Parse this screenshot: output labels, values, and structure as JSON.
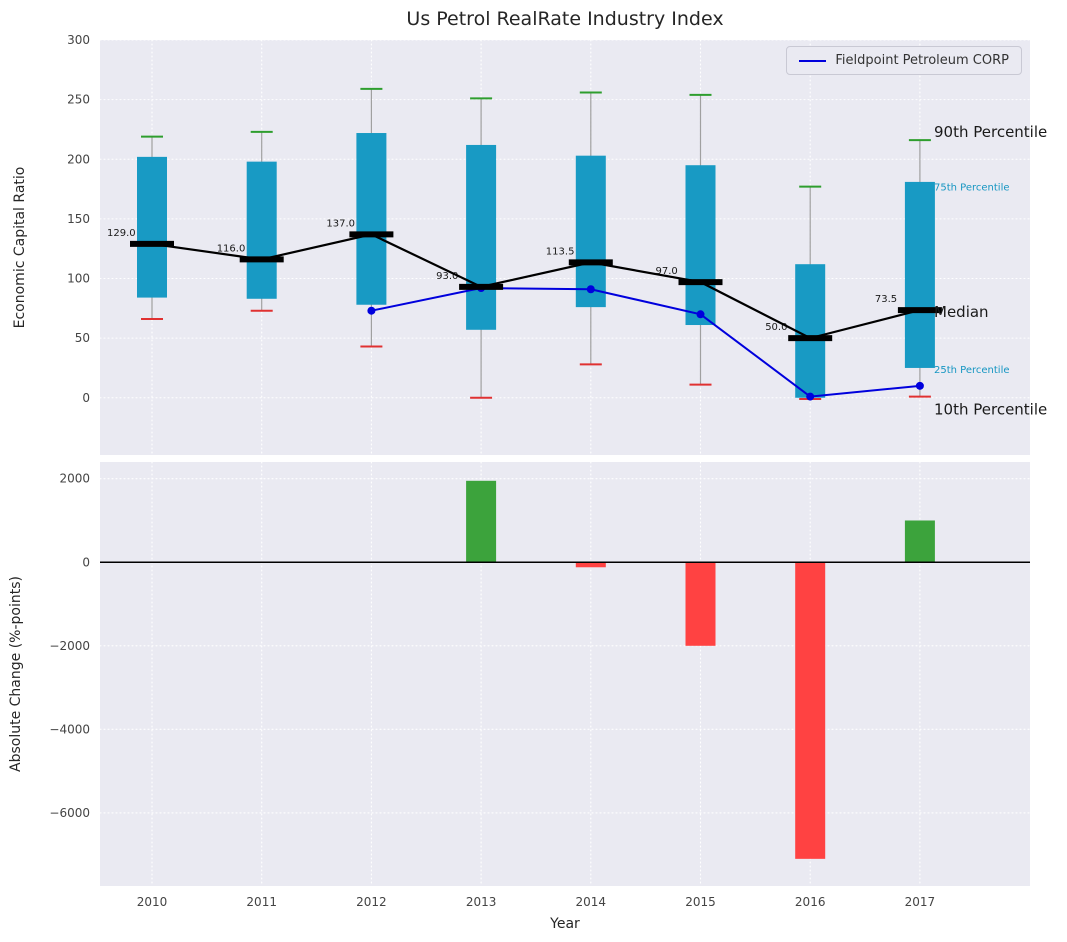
{
  "title": "Us Petrol RealRate Industry Index",
  "legend": {
    "label": "Fieldpoint Petroleum CORP"
  },
  "chart_data": [
    {
      "type": "boxplot+line",
      "title": "Us Petrol RealRate Industry Index",
      "ylabel": "Economic Capital Ratio",
      "ylim": [
        -48,
        300
      ],
      "yticks": [
        0,
        50,
        100,
        150,
        200,
        250,
        300
      ],
      "ytick_labels": [
        "0",
        "50",
        "100",
        "150",
        "200",
        "250",
        "300"
      ],
      "grid": true,
      "categories": [
        "2010",
        "2011",
        "2012",
        "2013",
        "2014",
        "2015",
        "2016",
        "2017"
      ],
      "box": {
        "p90": [
          219,
          223,
          259,
          251,
          256,
          254,
          177,
          216
        ],
        "p75": [
          202,
          198,
          222,
          212,
          203,
          195,
          112,
          181
        ],
        "median": [
          129,
          116,
          137,
          93,
          113.5,
          97,
          50,
          73.5
        ],
        "p25": [
          84,
          83,
          78,
          57,
          76,
          61,
          0,
          25
        ],
        "p10": [
          66,
          73,
          43,
          0,
          28,
          11,
          -1,
          1
        ]
      },
      "median_labels": [
        "129.0",
        "116.0",
        "137.0",
        "93.0",
        "113.5",
        "97.0",
        "50.0",
        "73.5"
      ],
      "line_series": {
        "name": "Fieldpoint Petroleum CORP",
        "x": [
          "2012",
          "2013",
          "2014",
          "2015",
          "2016",
          "2017"
        ],
        "values": [
          73,
          92,
          91,
          70,
          1,
          10
        ]
      },
      "annotations": [
        {
          "text": "90th Percentile",
          "y": 223,
          "color": "#1a1a1a",
          "size": 15
        },
        {
          "text": "75th Percentile",
          "y": 178,
          "color": "#1696c2",
          "size": 10
        },
        {
          "text": "Median",
          "y": 72,
          "color": "#1a1a1a",
          "size": 15
        },
        {
          "text": "25th Percentile",
          "y": 25,
          "color": "#1696c2",
          "size": 10
        },
        {
          "text": "10th Percentile",
          "y": -10,
          "color": "#1a1a1a",
          "size": 15
        }
      ],
      "legend": {
        "label": "Fieldpoint Petroleum CORP",
        "position": "upper right"
      },
      "colors": {
        "box": "#189ac4",
        "p90_cap": "#2e9e2e",
        "p10_cap": "#e03131",
        "median": "#000000",
        "whisker": "#a0a0a0",
        "line": "#0000dd",
        "panel": "#eaeaf2",
        "gridline": "#ffffff"
      }
    },
    {
      "type": "bar",
      "ylabel": "Absolute Change (%-points)",
      "xlabel": "Year",
      "ylim": [
        -7750,
        2400
      ],
      "yticks": [
        2000,
        0,
        -2000,
        -4000,
        -6000
      ],
      "ytick_labels": [
        "2000",
        "0",
        "−2000",
        "−4000",
        "−6000"
      ],
      "grid": true,
      "categories": [
        "2010",
        "2011",
        "2012",
        "2013",
        "2014",
        "2015",
        "2016",
        "2017"
      ],
      "values": [
        null,
        null,
        null,
        1950,
        -120,
        -2000,
        -7100,
        1000
      ],
      "positive_color": "#3ca33c",
      "negative_color": "#ff4242",
      "zero_line_color": "#000000"
    }
  ]
}
